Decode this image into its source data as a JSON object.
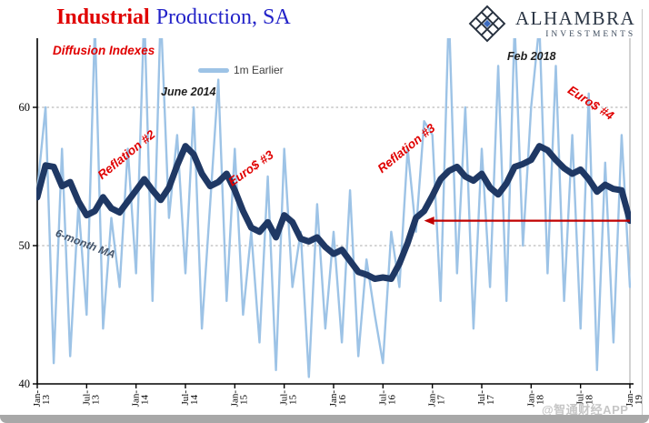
{
  "header": {
    "title_primary": "Industrial",
    "title_rest": "Production, SA"
  },
  "logo": {
    "name": "ALHAMBRA",
    "sub": "INVESTMENTS"
  },
  "legend": {
    "series1_label": "1m Earlier"
  },
  "annotations": {
    "diffusion": "Diffusion Indexes",
    "june2014": "June 2014",
    "reflation2": "Reflation #2",
    "euro3": "Euro$ #3",
    "reflation3": "Reflation #3",
    "feb2018": "Feb 2018",
    "euro4": "Euro$ #4",
    "six_month_ma": "6-month MA"
  },
  "watermark": "@智通财经APP",
  "colors": {
    "light_blue": "#9dc3e6",
    "navy": "#1f3864",
    "annotation_red": "#e00000",
    "arrow_red": "#c00000",
    "title_red": "#e00000",
    "title_blue": "#2323c8",
    "grid_gray": "#a8a8a8",
    "axis_black": "#000000"
  },
  "chart_data": {
    "type": "line",
    "title": "Industrial Production, SA",
    "subtitle": "Diffusion Indexes",
    "x_range": [
      "Jan-13",
      "Jan-19"
    ],
    "x_tick_labels": [
      [
        "Jan-",
        "13"
      ],
      [
        "Jul-",
        "13"
      ],
      [
        "Jan-",
        "14"
      ],
      [
        "Jul-",
        "14"
      ],
      [
        "Jan-",
        "15"
      ],
      [
        "Jul-",
        "15"
      ],
      [
        "Jan-",
        "16"
      ],
      [
        "Jul-",
        "16"
      ],
      [
        "Jan-",
        "17"
      ],
      [
        "Jul-",
        "17"
      ],
      [
        "Jan-",
        "18"
      ],
      [
        "Jul-",
        "18"
      ],
      [
        "Jan-",
        "19"
      ]
    ],
    "months_per_tick": 6,
    "y_ticks": [
      40,
      50,
      60
    ],
    "ylim": [
      40,
      65
    ],
    "grid": "dashed horizontal gridlines at 50 and 60",
    "legend_position": "top-center (1m Earlier only)",
    "values_note": "monthly values Jan-2013 to Jan-2019, estimated from plot",
    "series": [
      {
        "name": "1m Earlier",
        "color": "#9dc3e6",
        "width": 2.4,
        "values": [
          54,
          60,
          41.5,
          57,
          42,
          53,
          45,
          66,
          44,
          52,
          47,
          57,
          48,
          67,
          46,
          67,
          52,
          58,
          48,
          60,
          44,
          53,
          62,
          46,
          57,
          45,
          51,
          43,
          55,
          41,
          57,
          47,
          51,
          40.5,
          53,
          44,
          51,
          43,
          54,
          42,
          49,
          45,
          41.5,
          51,
          47,
          57,
          51,
          59,
          58,
          46,
          67,
          48,
          60,
          44,
          57,
          47,
          63,
          46,
          66,
          50,
          60,
          66,
          48,
          63,
          46,
          58,
          44,
          61,
          41,
          56,
          43,
          58,
          47
        ]
      },
      {
        "name": "6-month MA",
        "color": "#1f3864",
        "width": 7,
        "values": [
          53.5,
          55.8,
          55.7,
          54.3,
          54.6,
          53.2,
          52.2,
          52.5,
          53.5,
          52.7,
          52.4,
          53.2,
          54.0,
          54.8,
          54.0,
          53.3,
          54.2,
          55.8,
          57.2,
          56.6,
          55.2,
          54.3,
          54.6,
          55.2,
          54.0,
          52.5,
          51.3,
          51.0,
          51.7,
          50.6,
          52.2,
          51.7,
          50.5,
          50.3,
          50.6,
          49.9,
          49.4,
          49.7,
          48.9,
          48.1,
          47.9,
          47.6,
          47.7,
          47.6,
          48.7,
          50.2,
          52.0,
          52.5,
          53.6,
          54.8,
          55.4,
          55.7,
          55.0,
          54.7,
          55.2,
          54.2,
          53.7,
          54.5,
          55.7,
          55.9,
          56.2,
          57.2,
          56.9,
          56.2,
          55.6,
          55.2,
          55.5,
          54.8,
          53.9,
          54.4,
          54.1,
          54.0,
          51.8
        ]
      }
    ],
    "arrow": {
      "value": 51.8,
      "from_month_index": 72,
      "to_month_index": 47,
      "direction": "left"
    }
  }
}
